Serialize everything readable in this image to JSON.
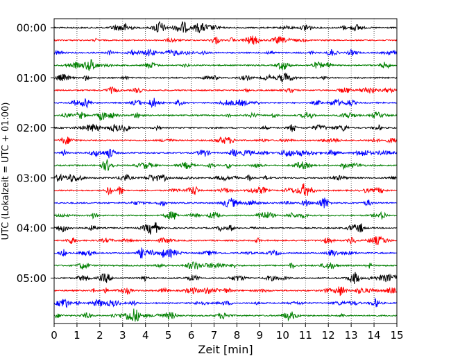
{
  "chart_data": {
    "type": "line",
    "title": "",
    "xlabel": "Zeit  [min]",
    "ylabel": "UTC (Lokalzeit = UTC + 01:00)",
    "xlim": [
      0,
      15
    ],
    "x_ticks": [
      0,
      1,
      2,
      3,
      4,
      5,
      6,
      7,
      8,
      9,
      10,
      11,
      12,
      13,
      14,
      15
    ],
    "x_tick_labels": [
      "0",
      "1",
      "2",
      "3",
      "4",
      "5",
      "6",
      "7",
      "8",
      "9",
      "10",
      "11",
      "12",
      "13",
      "14",
      "15"
    ],
    "y_tick_labels": [
      "00:00",
      "01:00",
      "02:00",
      "03:00",
      "04:00",
      "05:00"
    ],
    "y_tick_trace_index": [
      0,
      4,
      8,
      12,
      16,
      20
    ],
    "trace_count": 24,
    "trace_interval_minutes": 15,
    "trace_colors": [
      "#000000",
      "#ff0000",
      "#0000ff",
      "#008000"
    ],
    "vertical_grid": true,
    "grid_style": "dotted",
    "legend": "none"
  }
}
